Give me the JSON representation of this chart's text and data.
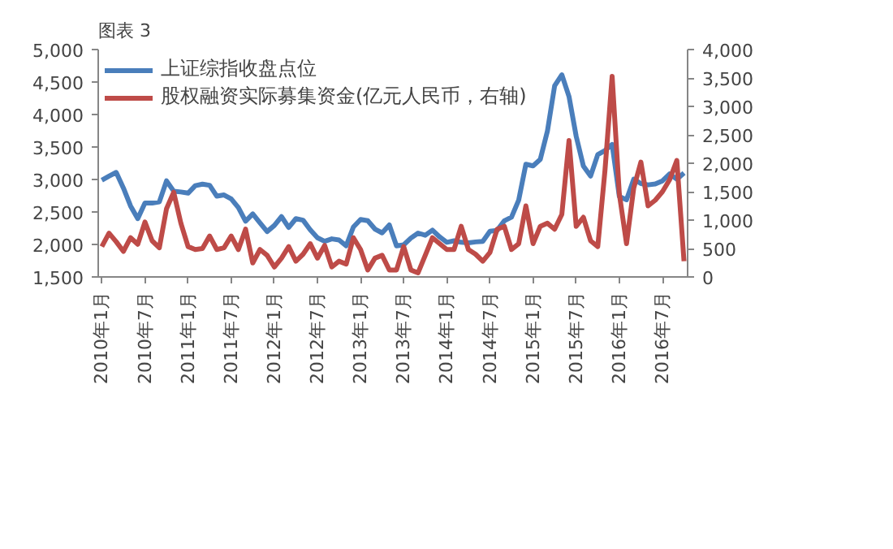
{
  "chart_data": {
    "type": "line",
    "title": "图表 3",
    "categories": [
      "2010年1月",
      null,
      null,
      null,
      null,
      null,
      "2010年7月",
      null,
      null,
      null,
      null,
      null,
      "2011年1月",
      null,
      null,
      null,
      null,
      null,
      "2011年7月",
      null,
      null,
      null,
      null,
      null,
      "2012年1月",
      null,
      null,
      null,
      null,
      null,
      "2012年7月",
      null,
      null,
      null,
      null,
      null,
      "2013年1月",
      null,
      null,
      null,
      null,
      null,
      "2013年7月",
      null,
      null,
      null,
      null,
      null,
      "2014年1月",
      null,
      null,
      null,
      null,
      null,
      "2014年7月",
      null,
      null,
      null,
      null,
      null,
      "2015年1月",
      null,
      null,
      null,
      null,
      null,
      "2015年7月",
      null,
      null,
      null,
      null,
      null,
      "2016年1月",
      null,
      null,
      null,
      null,
      null,
      "2016年7月",
      null,
      null,
      null
    ],
    "series": [
      {
        "name": "上证综指收盘点位",
        "color": "#4a7ebb",
        "values": [
          2989,
          3051,
          3109,
          2870,
          2592,
          2398,
          2638,
          2638,
          2655,
          2979,
          2820,
          2808,
          2790,
          2905,
          2928,
          2911,
          2743,
          2762,
          2701,
          2568,
          2359,
          2469,
          2333,
          2199,
          2292,
          2428,
          2262,
          2397,
          2373,
          2225,
          2103,
          2048,
          2086,
          2069,
          1980,
          2269,
          2385,
          2366,
          2237,
          2178,
          2301,
          1979,
          1994,
          2098,
          2175,
          2142,
          2221,
          2116,
          2033,
          2056,
          2033,
          2026,
          2039,
          2048,
          2202,
          2217,
          2364,
          2420,
          2683,
          3235,
          3210,
          3310,
          3748,
          4442,
          4612,
          4277,
          3664,
          3206,
          3053,
          3383,
          3446,
          3539,
          2738,
          2688,
          3004,
          2938,
          2917,
          2930,
          2979,
          3085,
          3005,
          3100
        ]
      },
      {
        "name": "股权融资实际募集资金(亿元人民币，右轴)",
        "color": "#be4b48",
        "axis": "y2",
        "values": [
          534,
          770,
          620,
          450,
          690,
          575,
          965,
          636,
          513,
          1200,
          1490,
          945,
          534,
          482,
          500,
          720,
          482,
          513,
          720,
          482,
          840,
          246,
          482,
          380,
          175,
          330,
          534,
          277,
          400,
          585,
          330,
          554,
          175,
          277,
          226,
          690,
          482,
          123,
          330,
          380,
          123,
          123,
          534,
          123,
          72,
          380,
          690,
          585,
          482,
          482,
          890,
          482,
          400,
          277,
          430,
          840,
          890,
          482,
          585,
          1250,
          585,
          890,
          945,
          840,
          1100,
          2400,
          890,
          1050,
          636,
          534,
          1870,
          3530,
          1460,
          585,
          1560,
          2020,
          1250,
          1350,
          1500,
          1710,
          2050,
          277
        ]
      }
    ],
    "ylim": [
      1500,
      5000
    ],
    "yticks": [
      {
        "value": 1500,
        "label": "1,500"
      },
      {
        "value": 2000,
        "label": "2,000"
      },
      {
        "value": 2500,
        "label": "2,500"
      },
      {
        "value": 3000,
        "label": "3,000"
      },
      {
        "value": 3500,
        "label": "3,500"
      },
      {
        "value": 4000,
        "label": "4,000"
      },
      {
        "value": 4500,
        "label": "4,500"
      },
      {
        "value": 5000,
        "label": "5,000"
      }
    ],
    "y2lim": [
      0,
      4000
    ],
    "y2ticks": [
      0,
      500,
      {
        "value": 1000,
        "label": "1,000"
      },
      {
        "value": 1500,
        "label": "1,500"
      },
      {
        "value": 2000,
        "label": "2,000"
      },
      {
        "value": 2500,
        "label": "2,500"
      },
      {
        "value": 3000,
        "label": "3,000"
      },
      {
        "value": 3500,
        "label": "3,500"
      },
      {
        "value": 4000,
        "label": "4,000"
      }
    ],
    "grid": false,
    "legend": "top left",
    "line_style": "solid"
  }
}
